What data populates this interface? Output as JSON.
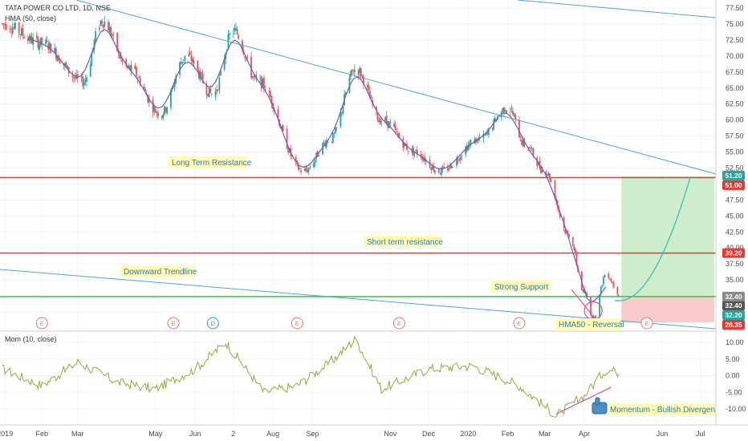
{
  "header": {
    "symbol_line": "TATA POWER CO LTD, 1D, NSE",
    "indicator_line": "HMA (50, close)",
    "mom_line": "Mom (10, close)"
  },
  "annotations": {
    "long_term_resistance": "Long Term Resistance",
    "short_term_resistance": "Short term resistance",
    "downward_trendline": "Downward Trendline",
    "strong_support": "Strong Support",
    "hma_reversal": "HMA50 - Reversal",
    "momentum_divergence": "Momentum - Bullish Divergence"
  },
  "x_axis": [
    "2019",
    "Feb",
    "Mar",
    "May",
    "Jun",
    "2",
    "Aug",
    "Sep",
    "Nov",
    "Dec",
    "2020",
    "Feb",
    "Mar",
    "Apr",
    "Jun",
    "Jul"
  ],
  "price_axis": [
    "77.50",
    "75.00",
    "72.50",
    "70.00",
    "67.50",
    "65.00",
    "62.50",
    "60.00",
    "57.50",
    "55.00",
    "52.50",
    "50.00",
    "47.50",
    "45.00",
    "42.50",
    "40.00",
    "37.50",
    "35.00",
    "32.50",
    "30.00"
  ],
  "mom_axis": [
    "10.00",
    "5.00",
    "0.00",
    "-5.00",
    "-10.00"
  ],
  "price_badges": [
    {
      "label": "51.20",
      "value": 51.2,
      "color": "#26a69a"
    },
    {
      "label": "51.00",
      "value": 51.0,
      "color": "#e53935"
    },
    {
      "label": "39.20",
      "value": 39.2,
      "color": "#e53935"
    },
    {
      "label": "32.40",
      "value": 32.4,
      "color": "#555555"
    },
    {
      "label": "32.20",
      "value": 32.2,
      "color": "#26a69a"
    },
    {
      "label": "28.35",
      "value": 28.35,
      "color": "#e53935"
    }
  ],
  "events": [
    {
      "label": "E",
      "kind": "earnings"
    },
    {
      "label": "E",
      "kind": "earnings"
    },
    {
      "label": "D",
      "kind": "dividend"
    },
    {
      "label": "E",
      "kind": "earnings"
    },
    {
      "label": "E",
      "kind": "earnings"
    },
    {
      "label": "E",
      "kind": "earnings"
    },
    {
      "label": "E",
      "kind": "earnings"
    }
  ],
  "colors": {
    "bull": "#26a69a",
    "bear": "#ef5350",
    "hma": "#6a5acd",
    "trend": "#4aa3df",
    "resistance": "#e53935",
    "support": "#2ecc40",
    "mom": "#9aa838",
    "zone_green": "#c8ebc6",
    "zone_red": "#f8c7c7"
  },
  "chart_data": [
    {
      "type": "candlestick",
      "title": "TATA POWER CO LTD, 1D, NSE",
      "ylim": [
        28.35,
        78
      ],
      "hma_series": "HMA (50, close)",
      "anchor_closes": [
        {
          "date": "2019-01-01",
          "value": 75
        },
        {
          "date": "2019-02-01",
          "value": 72
        },
        {
          "date": "2019-03-05",
          "value": 66
        },
        {
          "date": "2019-03-20",
          "value": 75.5
        },
        {
          "date": "2019-04-10",
          "value": 68
        },
        {
          "date": "2019-05-05",
          "value": 61
        },
        {
          "date": "2019-05-25",
          "value": 70
        },
        {
          "date": "2019-06-15",
          "value": 64
        },
        {
          "date": "2019-07-01",
          "value": 74
        },
        {
          "date": "2019-07-20",
          "value": 66
        },
        {
          "date": "2019-08-25",
          "value": 52
        },
        {
          "date": "2019-09-15",
          "value": 57
        },
        {
          "date": "2019-10-05",
          "value": 68
        },
        {
          "date": "2019-10-25",
          "value": 60
        },
        {
          "date": "2019-11-20",
          "value": 55
        },
        {
          "date": "2019-12-10",
          "value": 52
        },
        {
          "date": "2020-01-10",
          "value": 57
        },
        {
          "date": "2020-02-01",
          "value": 62
        },
        {
          "date": "2020-02-15",
          "value": 56
        },
        {
          "date": "2020-03-01",
          "value": 52
        },
        {
          "date": "2020-03-20",
          "value": 42
        },
        {
          "date": "2020-04-01",
          "value": 33
        },
        {
          "date": "2020-04-08",
          "value": 29
        },
        {
          "date": "2020-04-18",
          "value": 36
        },
        {
          "date": "2020-04-28",
          "value": 33
        }
      ],
      "levels": [
        {
          "name": "Long Term Resistance",
          "value": 51.0
        },
        {
          "name": "Short term resistance",
          "value": 39.2
        },
        {
          "name": "Strong Support",
          "value": 32.4
        }
      ],
      "trade_zone": {
        "entry": 32.4,
        "target": 51.2,
        "stop": 28.35
      }
    },
    {
      "type": "line",
      "title": "Mom (10, close)",
      "ylim": [
        -12,
        12
      ],
      "anchor_values": [
        {
          "date": "2019-01-01",
          "value": 2
        },
        {
          "date": "2019-02-01",
          "value": -3
        },
        {
          "date": "2019-03-01",
          "value": 4
        },
        {
          "date": "2019-04-01",
          "value": -2
        },
        {
          "date": "2019-05-01",
          "value": -4
        },
        {
          "date": "2019-06-01",
          "value": 2
        },
        {
          "date": "2019-06-25",
          "value": 10
        },
        {
          "date": "2019-07-25",
          "value": -5
        },
        {
          "date": "2019-08-20",
          "value": -3
        },
        {
          "date": "2019-09-15",
          "value": 4
        },
        {
          "date": "2019-10-05",
          "value": 11
        },
        {
          "date": "2019-10-25",
          "value": -4
        },
        {
          "date": "2019-12-01",
          "value": 2
        },
        {
          "date": "2020-01-05",
          "value": 3
        },
        {
          "date": "2020-02-10",
          "value": -3
        },
        {
          "date": "2020-03-10",
          "value": -12
        },
        {
          "date": "2020-04-01",
          "value": -6
        },
        {
          "date": "2020-04-18",
          "value": 2
        },
        {
          "date": "2020-04-28",
          "value": 1
        }
      ]
    }
  ]
}
